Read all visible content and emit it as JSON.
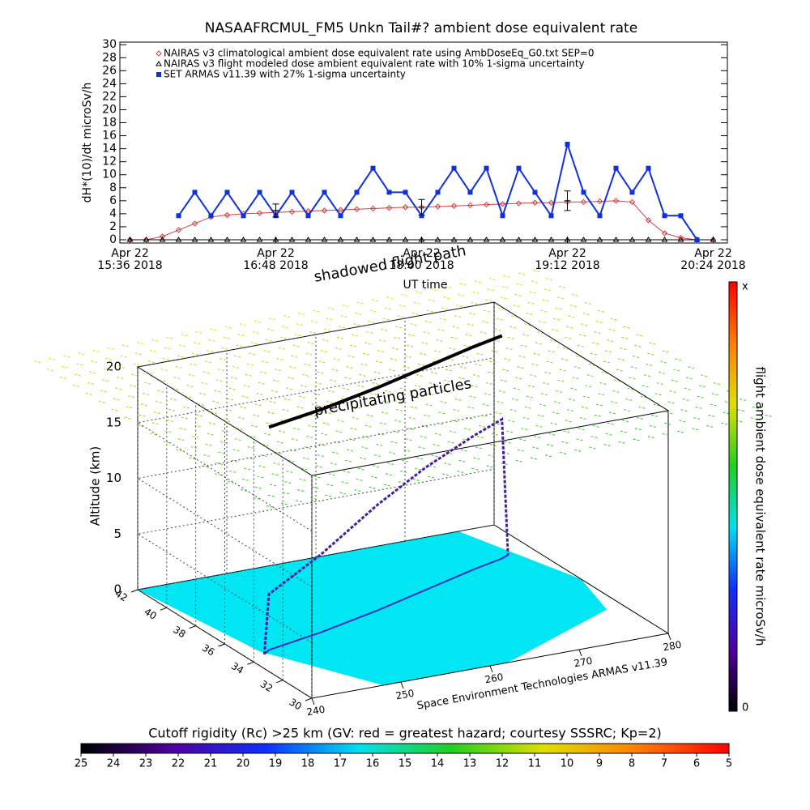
{
  "chart_data": [
    {
      "type": "line",
      "title": "NASAAFRCMUL_FM5 Unkn Tail#? ambient dose equivalent rate",
      "ylabel": "dH*(10)/dt microSv/h",
      "xlabel": "UT time",
      "xlim": [
        931,
        1231
      ],
      "ylim": [
        -0.5,
        30.4
      ],
      "yticks": [
        0,
        2,
        4,
        6,
        8,
        10,
        12,
        14,
        16,
        18,
        20,
        22,
        24,
        26,
        28,
        30
      ],
      "xticks": [
        {
          "value": 936,
          "label": [
            "Apr 22",
            "15:36 2018"
          ]
        },
        {
          "value": 1008,
          "label": [
            "Apr 22",
            "16:48 2018"
          ]
        },
        {
          "value": 1080,
          "label": [
            "Apr 22",
            "18:00 2018"
          ]
        },
        {
          "value": 1152,
          "label": [
            "Apr 22",
            "19:12 2018"
          ]
        },
        {
          "value": 1224,
          "label": [
            "Apr 22",
            "20:24 2018"
          ]
        }
      ],
      "x": [
        936,
        944,
        952,
        960,
        968,
        976,
        984,
        992,
        1000,
        1008,
        1016,
        1024,
        1032,
        1040,
        1048,
        1056,
        1064,
        1072,
        1080,
        1088,
        1096,
        1104,
        1112,
        1120,
        1128,
        1136,
        1144,
        1152,
        1160,
        1168,
        1176,
        1184,
        1192,
        1200,
        1208,
        1216,
        1224
      ],
      "series": [
        {
          "name": "NAIRAS v3 climatological ambient dose equivalent rate using AmbDoseEq_G0.txt SEP=0",
          "color": "#d04040",
          "marker": "diamond",
          "values": [
            0,
            0,
            0.5,
            1.5,
            2.5,
            3.5,
            3.8,
            4,
            4.1,
            4.2,
            4.3,
            4.4,
            4.5,
            4.6,
            4.7,
            4.8,
            4.9,
            5,
            5,
            5.1,
            5.2,
            5.3,
            5.4,
            5.5,
            5.6,
            5.7,
            5.7,
            5.8,
            5.8,
            5.9,
            6,
            5.8,
            3,
            1,
            0.3,
            0,
            0
          ]
        },
        {
          "name": "NAIRAS v3 flight modeled dose ambient equivalent rate with 10% 1-sigma uncertainty",
          "color": "#000000",
          "marker": "triangle",
          "values": [
            0,
            0,
            0,
            0,
            0,
            0,
            0,
            0,
            0,
            0,
            0,
            0,
            0,
            0,
            0,
            0,
            0,
            0,
            0,
            0,
            0,
            0,
            0,
            0,
            0,
            0,
            0,
            0,
            0,
            0,
            0,
            0,
            0,
            0,
            0,
            0,
            0
          ]
        },
        {
          "name": "SET ARMAS v11.39 with 27% 1-sigma uncertainty",
          "color": "#1030e0",
          "marker": "square",
          "values": [
            null,
            null,
            null,
            3.7,
            7.3,
            3.7,
            7.3,
            3.7,
            7.3,
            3.7,
            7.3,
            3.7,
            7.3,
            3.7,
            7.3,
            11,
            7.3,
            7.3,
            3.7,
            7.3,
            11,
            7.3,
            11,
            3.7,
            11,
            7.3,
            3.7,
            14.7,
            7.3,
            3.7,
            11,
            7.3,
            11,
            3.7,
            3.7,
            0,
            null
          ]
        }
      ],
      "error_bars": {
        "x": [
          1008,
          1080,
          1152
        ],
        "values": [
          4.5,
          5,
          6
        ],
        "errors": [
          1,
          1.2,
          1.5
        ]
      }
    },
    {
      "type": "surface3d",
      "annotations": [
        "shadowed flight path",
        "precipitating particles"
      ],
      "zlabel": "Altitude (km)",
      "zlim": [
        0,
        20
      ],
      "zticks": [
        0,
        5,
        10,
        15,
        20
      ],
      "latlim": [
        42,
        30
      ],
      "latticks": [
        30,
        32,
        34,
        36,
        38,
        40,
        42
      ],
      "lonlim": [
        240,
        280
      ],
      "lonticks": [
        240,
        250,
        260,
        270,
        280
      ],
      "credit": "Space Environment Technologies ARMAS v11.39",
      "flight": {
        "lon": [
          242,
          243,
          250,
          258,
          265,
          272,
          276,
          277
        ],
        "lat": [
          34.5,
          34.8,
          35.5,
          36.5,
          37.5,
          38.5,
          39,
          39.2
        ],
        "alt": [
          0,
          5,
          7,
          9.5,
          11,
          12,
          12.5,
          0
        ]
      }
    },
    {
      "type": "colorbar",
      "orientation": "vertical",
      "label": "flight ambient dose equivalent rate microSv/h",
      "top_label": "x",
      "bottom_label": 0,
      "colors": [
        "#000000",
        "#5000a0",
        "#1030ff",
        "#00e0f0",
        "#20d020",
        "#e0e000",
        "#ff8000",
        "#ff0000"
      ]
    },
    {
      "type": "colorbar",
      "orientation": "horizontal",
      "title": "Cutoff rigidity (Rc) >25 km (GV: red = greatest hazard; courtesy SSSRC; Kp=2)",
      "xlim": [
        25,
        5
      ],
      "xticks": [
        25,
        24,
        23,
        22,
        21,
        20,
        19,
        18,
        17,
        16,
        15,
        14,
        13,
        12,
        11,
        10,
        9,
        8,
        7,
        6,
        5
      ],
      "colors": [
        "#000000",
        "#5000a0",
        "#1030ff",
        "#00e0f0",
        "#20d020",
        "#e0e000",
        "#ff8000",
        "#ff0000"
      ]
    }
  ]
}
